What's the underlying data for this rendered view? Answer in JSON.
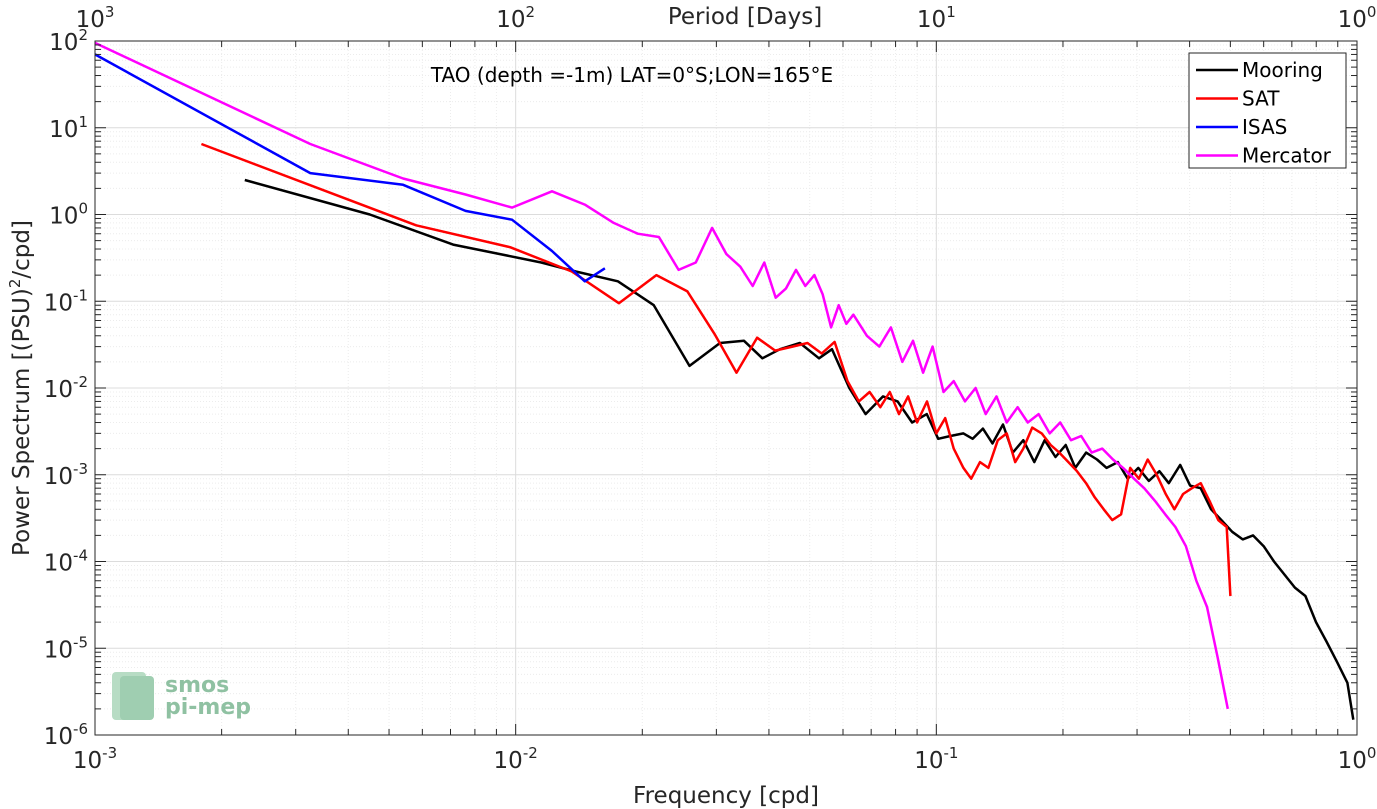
{
  "chart_data": {
    "type": "line",
    "title": "TAO (depth =-1m) LAT=0°S;LON=165°E",
    "xlabel": "Frequency [cpd]",
    "ylabel": "Power Spectrum [(PSU)",
    "ylabel_sup": "2",
    "ylabel_tail": "/cpd]",
    "top_xlabel": "Period [Days]",
    "x_scale": "log",
    "y_scale": "log",
    "xlim": [
      0.001,
      1
    ],
    "ylim": [
      1e-06,
      100
    ],
    "grid": true,
    "minor_grid": true,
    "legend_location": "top-right",
    "x_ticks": [
      {
        "value": 0.001,
        "base": "10",
        "exp": "-3"
      },
      {
        "value": 0.01,
        "base": "10",
        "exp": "-2"
      },
      {
        "value": 0.1,
        "base": "10",
        "exp": "-1"
      },
      {
        "value": 1,
        "base": "10",
        "exp": "0"
      }
    ],
    "top_ticks": [
      {
        "value": 0.001,
        "base": "10",
        "exp": "3"
      },
      {
        "value": 0.01,
        "base": "10",
        "exp": "2"
      },
      {
        "value": 0.1,
        "base": "10",
        "exp": "1"
      },
      {
        "value": 1,
        "base": "10",
        "exp": "0"
      }
    ],
    "y_ticks": [
      {
        "value": 100,
        "base": "10",
        "exp": "2"
      },
      {
        "value": 10,
        "base": "10",
        "exp": "1"
      },
      {
        "value": 1,
        "base": "10",
        "exp": "0"
      },
      {
        "value": 0.1,
        "base": "10",
        "exp": "-1"
      },
      {
        "value": 0.01,
        "base": "10",
        "exp": "-2"
      },
      {
        "value": 0.001,
        "base": "10",
        "exp": "-3"
      },
      {
        "value": 0.0001,
        "base": "10",
        "exp": "-4"
      },
      {
        "value": 1e-05,
        "base": "10",
        "exp": "-5"
      },
      {
        "value": 1e-06,
        "base": "10",
        "exp": "-6"
      }
    ],
    "series": [
      {
        "name": "Mooring",
        "color": "#000000",
        "x": [
          0.00227,
          0.0045,
          0.0071,
          0.0115,
          0.0139,
          0.0175,
          0.0213,
          0.0259,
          0.0306,
          0.0349,
          0.0386,
          0.0425,
          0.0474,
          0.0526,
          0.0565,
          0.0621,
          0.0679,
          0.0747,
          0.0809,
          0.0876,
          0.0949,
          0.101,
          0.108,
          0.116,
          0.122,
          0.129,
          0.136,
          0.144,
          0.152,
          0.161,
          0.171,
          0.181,
          0.192,
          0.203,
          0.214,
          0.227,
          0.241,
          0.254,
          0.27,
          0.285,
          0.302,
          0.32,
          0.339,
          0.357,
          0.38,
          0.401,
          0.425,
          0.45,
          0.476,
          0.505,
          0.535,
          0.566,
          0.6,
          0.635,
          0.673,
          0.712,
          0.754,
          0.799,
          0.846,
          0.896,
          0.949,
          0.98
        ],
        "y": [
          2.5,
          1.0,
          0.45,
          0.28,
          0.22,
          0.17,
          0.09,
          0.018,
          0.033,
          0.035,
          0.022,
          0.028,
          0.033,
          0.022,
          0.028,
          0.01,
          0.005,
          0.008,
          0.007,
          0.004,
          0.005,
          0.0026,
          0.0028,
          0.003,
          0.0026,
          0.0034,
          0.0023,
          0.0038,
          0.0018,
          0.0025,
          0.0014,
          0.0025,
          0.0016,
          0.0022,
          0.0012,
          0.0018,
          0.0015,
          0.0012,
          0.0014,
          0.0009,
          0.0012,
          0.00085,
          0.0011,
          0.0008,
          0.0013,
          0.00075,
          0.0007,
          0.0004,
          0.0003,
          0.00022,
          0.00018,
          0.0002,
          0.00015,
          0.0001,
          7e-05,
          5e-05,
          4e-05,
          2e-05,
          1.2e-05,
          7e-06,
          4e-06,
          1.5e-06
        ]
      },
      {
        "name": "SAT",
        "color": "#ff0000",
        "x": [
          0.00179,
          0.0058,
          0.0097,
          0.0136,
          0.0176,
          0.0216,
          0.0256,
          0.0297,
          0.0335,
          0.0375,
          0.0414,
          0.0455,
          0.0494,
          0.0534,
          0.0573,
          0.0615,
          0.0654,
          0.0694,
          0.0736,
          0.0775,
          0.0815,
          0.0857,
          0.09,
          0.095,
          0.1,
          0.105,
          0.11,
          0.116,
          0.121,
          0.127,
          0.133,
          0.14,
          0.147,
          0.154,
          0.161,
          0.169,
          0.178,
          0.187,
          0.196,
          0.206,
          0.216,
          0.227,
          0.238,
          0.25,
          0.262,
          0.275,
          0.289,
          0.303,
          0.318,
          0.334,
          0.351,
          0.368,
          0.386,
          0.405,
          0.425,
          0.446,
          0.468,
          0.49,
          0.5
        ],
        "y": [
          6.5,
          0.75,
          0.42,
          0.22,
          0.095,
          0.2,
          0.13,
          0.042,
          0.015,
          0.038,
          0.027,
          0.03,
          0.033,
          0.025,
          0.034,
          0.012,
          0.007,
          0.009,
          0.006,
          0.009,
          0.005,
          0.008,
          0.004,
          0.007,
          0.003,
          0.0045,
          0.002,
          0.0012,
          0.0009,
          0.0014,
          0.0012,
          0.0025,
          0.003,
          0.0014,
          0.002,
          0.0035,
          0.003,
          0.0022,
          0.0018,
          0.0014,
          0.0011,
          0.0008,
          0.00055,
          0.0004,
          0.0003,
          0.00035,
          0.0012,
          0.0009,
          0.0015,
          0.001,
          0.0006,
          0.0004,
          0.0006,
          0.0007,
          0.0008,
          0.0005,
          0.0003,
          0.00025,
          4e-05
        ]
      },
      {
        "name": "ISAS",
        "color": "#0000ff",
        "x": [
          0.001,
          0.00325,
          0.0054,
          0.0076,
          0.0098,
          0.0122,
          0.0146,
          0.0163
        ],
        "y": [
          70,
          3.0,
          2.2,
          1.1,
          0.87,
          0.38,
          0.17,
          0.24
        ]
      },
      {
        "name": "Mercator",
        "color": "#ff00ff",
        "x": [
          0.001,
          0.00325,
          0.0054,
          0.0076,
          0.0098,
          0.0122,
          0.0146,
          0.0171,
          0.0195,
          0.0219,
          0.0244,
          0.0268,
          0.0293,
          0.0317,
          0.0342,
          0.0366,
          0.039,
          0.0415,
          0.0439,
          0.0464,
          0.0488,
          0.0513,
          0.0537,
          0.0562,
          0.0586,
          0.0611,
          0.0635,
          0.0684,
          0.0732,
          0.078,
          0.083,
          0.088,
          0.093,
          0.098,
          0.104,
          0.11,
          0.117,
          0.124,
          0.131,
          0.139,
          0.147,
          0.156,
          0.165,
          0.175,
          0.186,
          0.197,
          0.209,
          0.221,
          0.234,
          0.248,
          0.263,
          0.278,
          0.295,
          0.312,
          0.331,
          0.35,
          0.37,
          0.392,
          0.415,
          0.44,
          0.466,
          0.493
        ],
        "y": [
          95,
          6.5,
          2.6,
          1.7,
          1.2,
          1.85,
          1.3,
          0.8,
          0.6,
          0.55,
          0.23,
          0.28,
          0.7,
          0.35,
          0.25,
          0.15,
          0.28,
          0.11,
          0.14,
          0.23,
          0.15,
          0.2,
          0.12,
          0.05,
          0.09,
          0.055,
          0.07,
          0.04,
          0.03,
          0.05,
          0.02,
          0.035,
          0.015,
          0.03,
          0.009,
          0.012,
          0.007,
          0.01,
          0.005,
          0.008,
          0.004,
          0.006,
          0.004,
          0.005,
          0.003,
          0.004,
          0.0025,
          0.0028,
          0.0018,
          0.002,
          0.0015,
          0.0012,
          0.0009,
          0.0007,
          0.0005,
          0.00035,
          0.00025,
          0.00015,
          6e-05,
          3e-05,
          8e-06,
          2e-06
        ]
      }
    ]
  },
  "watermark": {
    "line1": "smos",
    "line2": "pi-mep"
  }
}
